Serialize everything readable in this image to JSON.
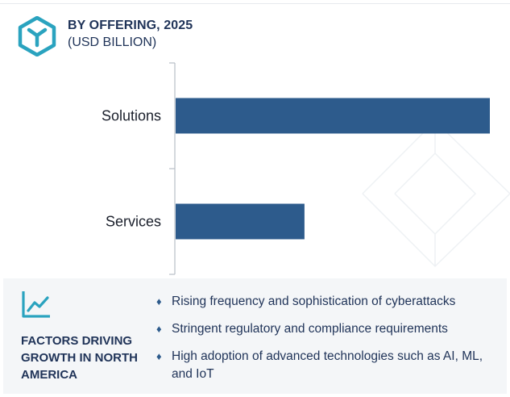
{
  "header": {
    "title": "BY OFFERING, 2025",
    "subtitle": "(USD BILLION)"
  },
  "chart_data": {
    "type": "bar",
    "orientation": "horizontal",
    "categories": [
      "Solutions",
      "Services"
    ],
    "values": [
      100,
      41
    ],
    "value_scale": "relative (no axis values printed)",
    "xlabel": "",
    "ylabel": "",
    "bar_color": "#2d5b8c",
    "grid": false,
    "legend": "none"
  },
  "factors": {
    "icon": "trend-line-icon",
    "title": "FACTORS DRIVING GROWTH IN NORTH AMERICA",
    "items": [
      "Rising frequency and sophistication of cyberattacks",
      "Stringent regulatory and compliance requirements",
      "High adoption of advanced technologies such as AI, ML, and IoT"
    ],
    "bullet_glyph": "♦"
  },
  "colors": {
    "accent": "#2aa3bf",
    "text": "#1f3358",
    "bar": "#2d5b8c",
    "panel_bg": "#f4f6f8"
  }
}
